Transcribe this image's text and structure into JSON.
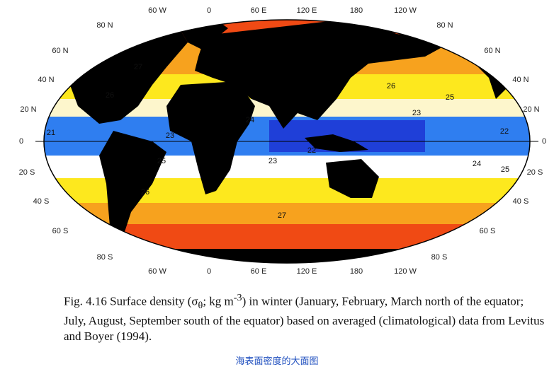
{
  "map": {
    "longitude_labels_top": [
      "60 W",
      "0",
      "60 E",
      "120 E",
      "180",
      "120 W"
    ],
    "longitude_labels_bottom": [
      "60 W",
      "0",
      "60 E",
      "120 E",
      "180",
      "120 W"
    ],
    "latitude_labels_left": [
      "80 N",
      "60 N",
      "40 N",
      "20 N",
      "0",
      "20 S",
      "40 S",
      "60 S",
      "80 S"
    ],
    "latitude_labels_right": [
      "80 N",
      "60 N",
      "40 N",
      "20 N",
      "0",
      "20 S",
      "40 S",
      "60 S",
      "80 S"
    ],
    "contour_labels": [
      27,
      26,
      26,
      25,
      23,
      24,
      21,
      23,
      22,
      22,
      23,
      25,
      24,
      25,
      26,
      27
    ]
  },
  "caption": {
    "parts": [
      "Fig. 4.16 Surface density (σ",
      "θ",
      "; kg m",
      "-3",
      ") in winter (January, February, March north of the equator; July, August, September south of the equator) based on averaged (climatological) data from Levitus and Boyer (1994)."
    ]
  },
  "link": "海表面密度的大面图"
}
